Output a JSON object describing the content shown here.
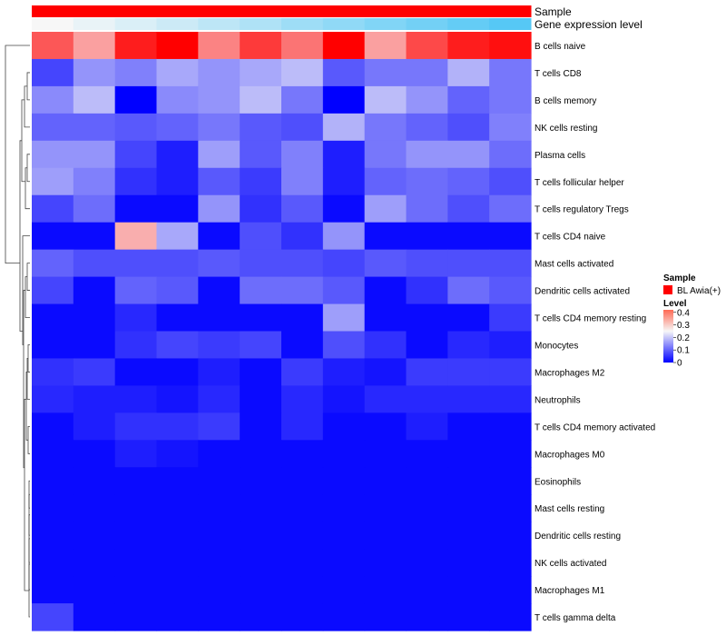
{
  "chart_data": {
    "type": "heatmap",
    "annotations": {
      "sample": {
        "label": "Sample",
        "value": "BL Awia(+)",
        "color": "#ff0000"
      },
      "gene_expression": {
        "label": "Gene expression level",
        "gradient": [
          "#f7f7f7",
          "#56c8f5"
        ]
      }
    },
    "legend": {
      "sample_title": "Sample",
      "sample_entry": "BL Awia(+)",
      "level_title": "Level",
      "level_ticks": [
        "0.4",
        "0.3",
        "0.2",
        "0.1",
        "0"
      ],
      "tick_values": [
        0.4,
        0.3,
        0.2,
        0.1,
        0
      ],
      "range": [
        0,
        0.42
      ],
      "colors": {
        "low": "#0000ff",
        "mid": "#f7f7f7",
        "high": "#ff0000",
        "midpoint": 0.25
      }
    },
    "rows": [
      "B cells naive",
      "T cells CD8",
      "B cells memory",
      "NK cells resting",
      "Plasma cells",
      "T cells follicular helper",
      "T cells regulatory  Tregs",
      "T cells CD4 naive",
      "Mast cells activated",
      "Dendritic cells activated",
      "T cells CD4 memory resting",
      "Monocytes",
      "Macrophages M2",
      "Neutrophils",
      "T cells CD4 memory activated",
      "Macrophages M0",
      "Eosinophils",
      "Mast cells resting",
      "Dendritic cells resting",
      "NK cells activated",
      "Macrophages M1",
      "T cells gamma delta"
    ],
    "n_columns": 12,
    "values": [
      [
        0.36,
        0.31,
        0.4,
        0.42,
        0.33,
        0.38,
        0.34,
        0.42,
        0.31,
        0.37,
        0.4,
        0.41
      ],
      [
        0.07,
        0.15,
        0.13,
        0.17,
        0.15,
        0.17,
        0.19,
        0.09,
        0.12,
        0.12,
        0.18,
        0.12
      ],
      [
        0.14,
        0.19,
        0.0,
        0.14,
        0.15,
        0.19,
        0.12,
        0.0,
        0.19,
        0.15,
        0.1,
        0.12
      ],
      [
        0.1,
        0.1,
        0.09,
        0.1,
        0.12,
        0.09,
        0.08,
        0.18,
        0.12,
        0.1,
        0.08,
        0.13
      ],
      [
        0.15,
        0.15,
        0.07,
        0.03,
        0.16,
        0.09,
        0.13,
        0.03,
        0.12,
        0.15,
        0.15,
        0.11
      ],
      [
        0.16,
        0.13,
        0.05,
        0.03,
        0.09,
        0.06,
        0.13,
        0.03,
        0.1,
        0.11,
        0.1,
        0.08
      ],
      [
        0.07,
        0.11,
        0.01,
        0.01,
        0.15,
        0.05,
        0.09,
        0.01,
        0.16,
        0.11,
        0.08,
        0.11
      ],
      [
        0.01,
        0.01,
        0.3,
        0.17,
        0.01,
        0.08,
        0.05,
        0.15,
        0.01,
        0.01,
        0.01,
        0.01
      ],
      [
        0.1,
        0.08,
        0.08,
        0.08,
        0.09,
        0.08,
        0.08,
        0.07,
        0.09,
        0.08,
        0.08,
        0.08
      ],
      [
        0.07,
        0.01,
        0.1,
        0.09,
        0.01,
        0.11,
        0.11,
        0.09,
        0.01,
        0.05,
        0.11,
        0.09
      ],
      [
        0.01,
        0.01,
        0.04,
        0.01,
        0.01,
        0.01,
        0.01,
        0.16,
        0.01,
        0.01,
        0.01,
        0.06
      ],
      [
        0.01,
        0.01,
        0.05,
        0.07,
        0.06,
        0.07,
        0.01,
        0.08,
        0.05,
        0.01,
        0.04,
        0.03
      ],
      [
        0.05,
        0.06,
        0.01,
        0.01,
        0.03,
        0.01,
        0.06,
        0.03,
        0.02,
        0.06,
        0.06,
        0.06
      ],
      [
        0.04,
        0.03,
        0.03,
        0.02,
        0.04,
        0.01,
        0.04,
        0.02,
        0.04,
        0.04,
        0.04,
        0.04
      ],
      [
        0.01,
        0.03,
        0.05,
        0.05,
        0.06,
        0.01,
        0.04,
        0.01,
        0.01,
        0.03,
        0.01,
        0.01
      ],
      [
        0.01,
        0.01,
        0.03,
        0.02,
        0.01,
        0.01,
        0.01,
        0.01,
        0.01,
        0.01,
        0.01,
        0.01
      ],
      [
        0.01,
        0.01,
        0.01,
        0.01,
        0.01,
        0.01,
        0.01,
        0.01,
        0.01,
        0.01,
        0.01,
        0.01
      ],
      [
        0.01,
        0.01,
        0.01,
        0.01,
        0.01,
        0.01,
        0.01,
        0.01,
        0.01,
        0.01,
        0.01,
        0.01
      ],
      [
        0.01,
        0.01,
        0.01,
        0.01,
        0.01,
        0.01,
        0.01,
        0.01,
        0.01,
        0.01,
        0.01,
        0.01
      ],
      [
        0.01,
        0.01,
        0.01,
        0.01,
        0.01,
        0.01,
        0.01,
        0.01,
        0.01,
        0.01,
        0.01,
        0.01
      ],
      [
        0.01,
        0.01,
        0.01,
        0.01,
        0.01,
        0.01,
        0.01,
        0.01,
        0.01,
        0.01,
        0.01,
        0.01
      ],
      [
        0.07,
        0.01,
        0.01,
        0.01,
        0.01,
        0.01,
        0.01,
        0.01,
        0.01,
        0.01,
        0.01,
        0.01
      ]
    ],
    "gene_expression_order": [
      0.0,
      0.09,
      0.18,
      0.27,
      0.36,
      0.45,
      0.55,
      0.64,
      0.73,
      0.82,
      0.91,
      1.0
    ],
    "row_dendrogram": "hierarchical clustering tree on left",
    "grid": false
  }
}
